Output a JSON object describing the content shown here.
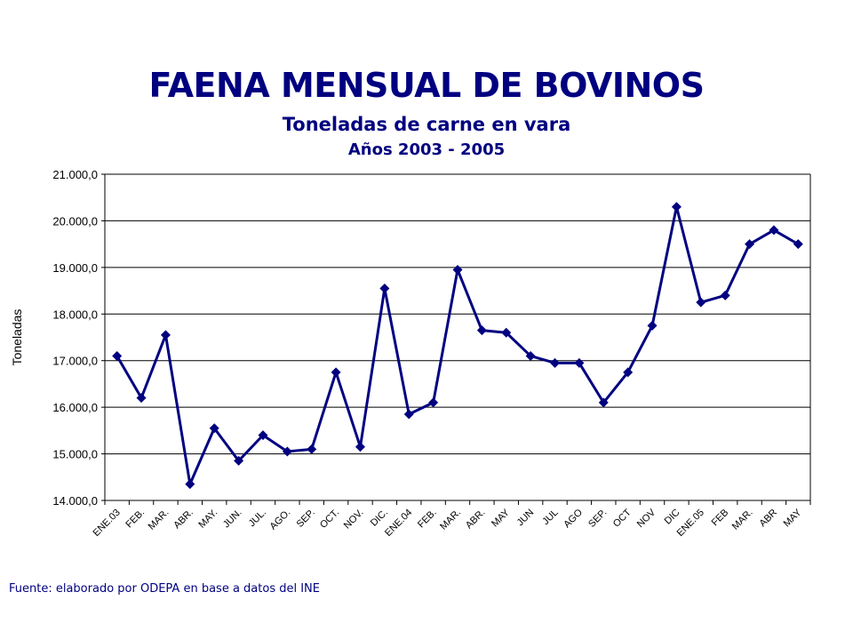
{
  "header": {
    "title": "FAENA MENSUAL DE BOVINOS",
    "subtitle": "Toneladas de carne en vara",
    "subtitle2": "Años 2003 - 2005"
  },
  "footer": {
    "source": "Fuente: elaborado por ODEPA en base a datos del INE"
  },
  "chart_data": {
    "type": "line",
    "title": "FAENA MENSUAL DE BOVINOS",
    "ylabel": "Toneladas",
    "xlabel": "",
    "ylim": [
      14000,
      21000
    ],
    "yticks": [
      "14.000,0",
      "15.000,0",
      "16.000,0",
      "17.000,0",
      "18.000,0",
      "19.000,0",
      "20.000,0",
      "21.000,0"
    ],
    "grid": true,
    "categories": [
      "ENE.03",
      "FEB.",
      "MAR.",
      "ABR.",
      "MAY.",
      "JUN.",
      "JUL.",
      "AGO.",
      "SEP.",
      "OCT.",
      "NOV.",
      "DIC.",
      "ENE.04",
      "FEB.",
      "MAR.",
      "ABR.",
      "MAY",
      "JUN",
      "JUL",
      "AGO",
      "SEP.",
      "OCT",
      "NOV",
      "DIC",
      "ENE.05",
      "FEB",
      "MAR.",
      "ABR",
      "MAY"
    ],
    "series": [
      {
        "name": "",
        "color": "#000080",
        "values": [
          17100,
          16200,
          17550,
          14350,
          15550,
          14850,
          15400,
          15050,
          15100,
          16750,
          15150,
          18550,
          15850,
          16100,
          18950,
          17650,
          17600,
          17100,
          16950,
          16950,
          16100,
          16750,
          17750,
          20300,
          18250,
          18400,
          19500,
          19800,
          19500
        ]
      }
    ]
  }
}
